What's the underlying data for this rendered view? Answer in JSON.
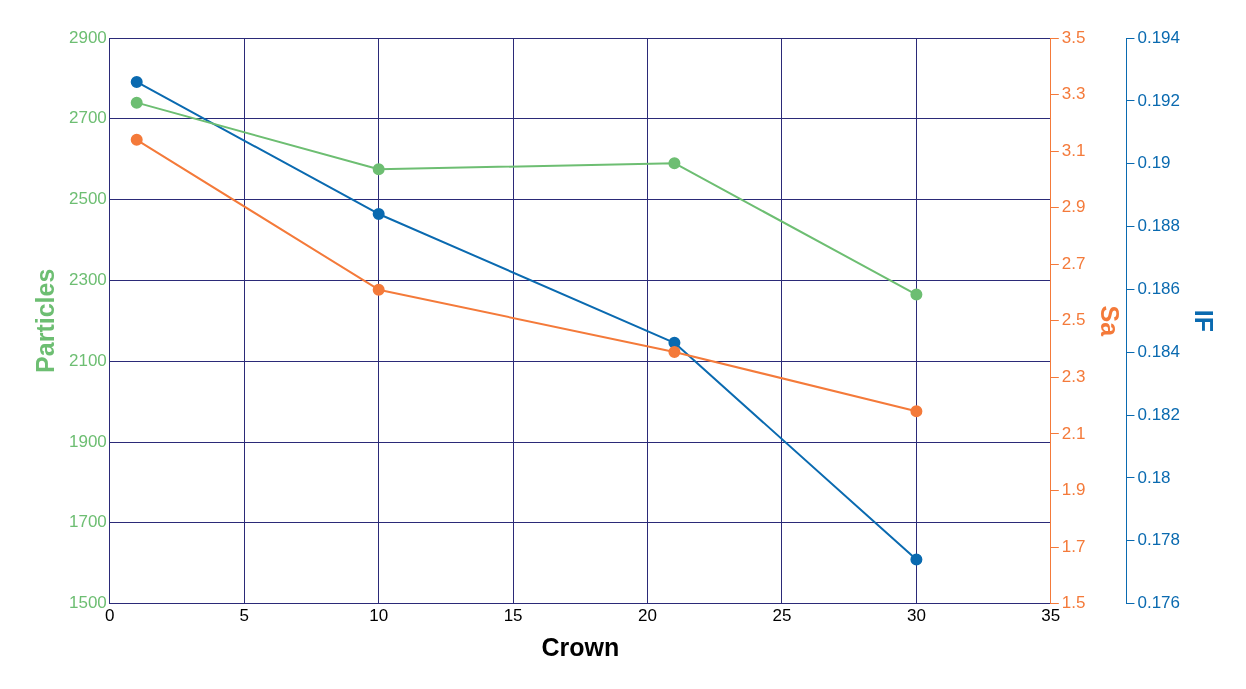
{
  "chart_data": {
    "type": "line",
    "xlabel": "Crown",
    "ylabel": "Particles",
    "y2label": "Sa",
    "y3label": "IF",
    "x": [
      1,
      10,
      21,
      30
    ],
    "series": [
      {
        "color": "#6dbe72",
        "values": [
          2740,
          2575,
          2590,
          2265
        ],
        "axis": "y"
      },
      {
        "color": "#f47a3a",
        "values": [
          3.14,
          2.61,
          2.39,
          2.18
        ],
        "axis": "y2"
      },
      {
        "color": "#0a6ab0",
        "values": [
          0.1926,
          0.1884,
          0.1843,
          0.1774
        ],
        "axis": "y3"
      }
    ],
    "xlim": [
      0,
      35
    ],
    "xticks": [
      0,
      5,
      10,
      15,
      20,
      25,
      30,
      35
    ],
    "ylim": [
      1500,
      2900
    ],
    "yticks": [
      1500,
      1700,
      1900,
      2100,
      2300,
      2500,
      2700,
      2900
    ],
    "y2lim": [
      1.5,
      3.5
    ],
    "y2ticks": [
      1.5,
      1.7,
      1.9,
      2.1,
      2.3,
      2.5,
      2.7,
      2.9,
      3.1,
      3.3,
      3.5
    ],
    "y3lim": [
      0.176,
      0.194
    ],
    "y3ticks": [
      0.176,
      0.178,
      0.18,
      0.182,
      0.184,
      0.186,
      0.188,
      0.19,
      0.192,
      0.194
    ],
    "grid": true,
    "legend": false,
    "marker": "circle",
    "line_style": "solid"
  }
}
